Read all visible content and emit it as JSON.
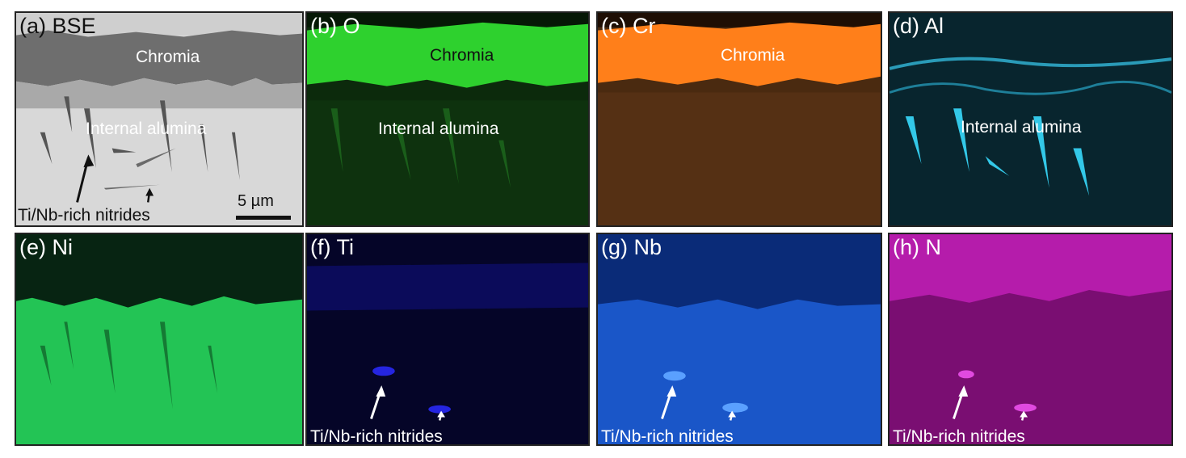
{
  "panels": {
    "a": {
      "label": "(a) BSE"
    },
    "b": {
      "label": "(b) O"
    },
    "c": {
      "label": "(c) Cr"
    },
    "d": {
      "label": "(d) Al"
    },
    "e": {
      "label": "(e) Ni"
    },
    "f": {
      "label": "(f) Ti"
    },
    "g": {
      "label": "(g) Nb"
    },
    "h": {
      "label": "(h) N"
    }
  },
  "annotations": {
    "chromia": "Chromia",
    "internal_alumina": "Internal alumina",
    "nitrides": "Ti/Nb-rich nitrides"
  },
  "scale_bar": {
    "text": "5 µm"
  },
  "colors": {
    "oxygen": "#22cc22",
    "chromium": "#ff7f1a",
    "aluminum": "#33c8e8",
    "nickel": "#22c655",
    "titanium": "#1d1dd8",
    "niobium": "#1a62d8",
    "nitrogen": "#c020b8"
  }
}
